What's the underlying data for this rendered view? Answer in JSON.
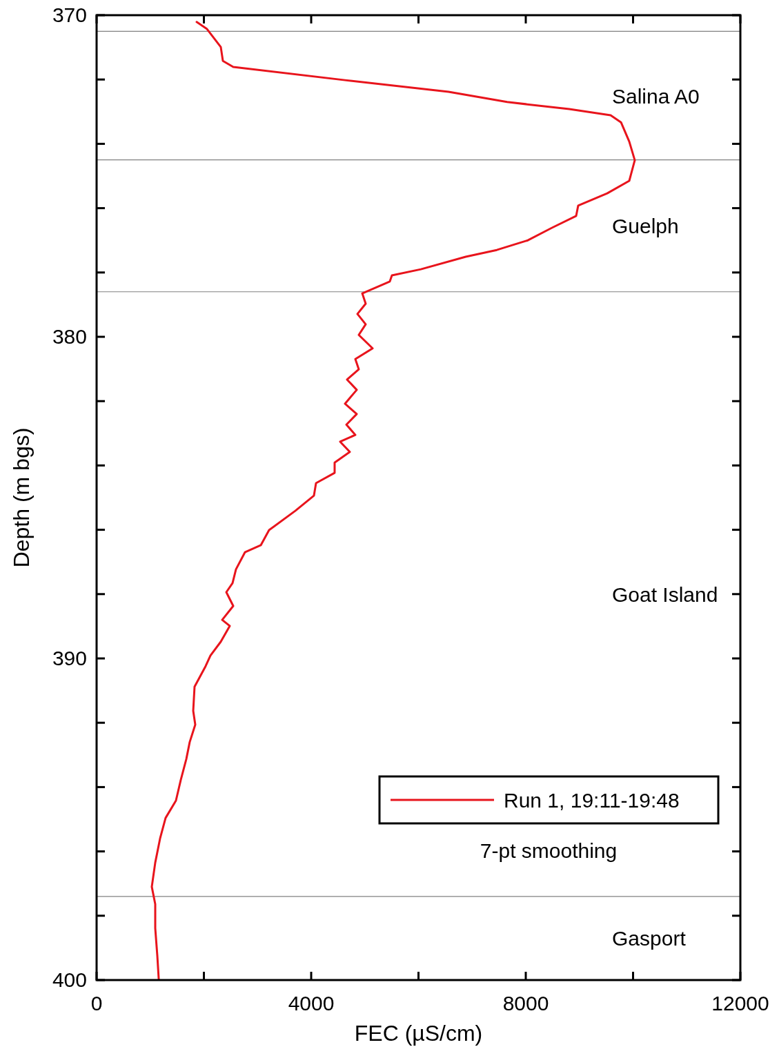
{
  "chart_data": {
    "type": "line",
    "xlabel": "FEC (µS/cm)",
    "ylabel": "Depth (m bgs)",
    "xlim": [
      0,
      12000
    ],
    "ylim": [
      400,
      370
    ],
    "xticks": [
      0,
      {
        "value": 2000,
        "label": null
      },
      4000,
      {
        "value": 6000,
        "label": null
      },
      8000,
      {
        "value": 10000,
        "label": null
      },
      12000
    ],
    "yticks": [
      370,
      {
        "value": 372,
        "label": null
      },
      {
        "value": 374,
        "label": null
      },
      {
        "value": 376,
        "label": null
      },
      {
        "value": 378,
        "label": null
      },
      380,
      {
        "value": 382,
        "label": null
      },
      {
        "value": 384,
        "label": null
      },
      {
        "value": 386,
        "label": null
      },
      {
        "value": 388,
        "label": null
      },
      390,
      {
        "value": 392,
        "label": null
      },
      {
        "value": 394,
        "label": null
      },
      {
        "value": 396,
        "label": null
      },
      {
        "value": 398,
        "label": null
      },
      400
    ],
    "grid": false,
    "legend": "bottom right",
    "marker": "none",
    "line_style": "solid",
    "ref_lines": [
      {
        "axis": "y",
        "value": 370.5,
        "color": "#808080"
      },
      {
        "axis": "y",
        "value": 374.5,
        "color": "#808080"
      },
      {
        "axis": "y",
        "value": 378.6,
        "color": "#808080"
      },
      {
        "axis": "y",
        "value": 397.4,
        "color": "#808080"
      }
    ],
    "annotations": [
      "Salina A0",
      "Guelph",
      "Goat Island",
      "Gasport",
      "7-pt smoothing"
    ],
    "series": [
      {
        "name": "Run 1, 19:11-19:48",
        "color": "#e8141c",
        "x": [
          1865,
          2058,
          2315,
          2354,
          2547,
          4630,
          6560,
          7653,
          8810,
          9582,
          9775,
          9929,
          10032,
          9929,
          9518,
          8977,
          8939,
          8489,
          8039,
          7460,
          6881,
          6045,
          5505,
          5466,
          4952,
          5016,
          4862,
          5016,
          4887,
          5145,
          4823,
          4887,
          4669,
          4849,
          4630,
          4849,
          4656,
          4823,
          4540,
          4720,
          4437,
          4437,
          4090,
          4051,
          3704,
          3215,
          3061,
          2765,
          2598,
          2534,
          2418,
          2547,
          2341,
          2482,
          2315,
          2122,
          2032,
          1826,
          1801,
          1839,
          1736,
          1672,
          1569,
          1479,
          1286,
          1183,
          1093,
          1029,
          1093,
          1093,
          1132,
          1158
        ],
        "values": [
          370.21,
          370.43,
          370.99,
          371.42,
          371.61,
          372.02,
          372.38,
          372.7,
          372.92,
          373.11,
          373.33,
          373.93,
          374.51,
          375.15,
          375.54,
          375.92,
          376.24,
          376.61,
          377,
          377.3,
          377.51,
          377.9,
          378.09,
          378.28,
          378.65,
          378.97,
          379.29,
          379.61,
          379.94,
          380.36,
          380.69,
          381.01,
          381.33,
          381.65,
          382.08,
          382.4,
          382.73,
          383.05,
          383.26,
          383.58,
          383.91,
          384.23,
          384.55,
          384.94,
          385.41,
          386.01,
          386.48,
          386.7,
          387.23,
          387.66,
          387.94,
          388.37,
          388.8,
          388.99,
          389.48,
          389.91,
          390.24,
          390.88,
          391.63,
          392.06,
          392.6,
          393.13,
          393.78,
          394.42,
          394.96,
          395.6,
          396.35,
          397.1,
          397.64,
          398.39,
          399.25,
          399.96
        ]
      }
    ]
  }
}
